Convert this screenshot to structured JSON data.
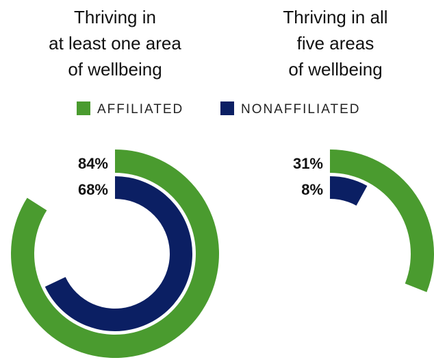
{
  "chart_data": {
    "type": "radial_bar",
    "categories": [
      "Thriving in\nat least one area\nof wellbeing",
      "Thriving in all\nfive areas\nof wellbeing"
    ],
    "series": [
      {
        "name": "AFFILIATED",
        "color": "#4a9b2f",
        "values": [
          84,
          31
        ],
        "value_labels": [
          "84%",
          "31%"
        ]
      },
      {
        "name": "NONAFFILIATED",
        "color": "#0b1f63",
        "values": [
          68,
          8
        ],
        "value_labels": [
          "68%",
          "8%"
        ]
      }
    ],
    "rlim": [
      0,
      100
    ]
  }
}
